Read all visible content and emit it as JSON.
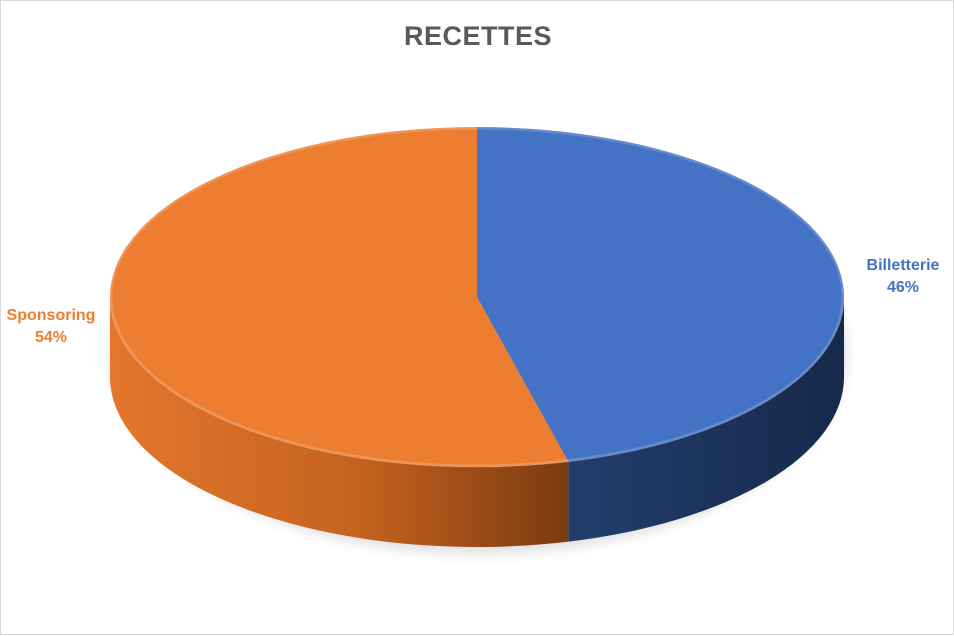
{
  "chart_data": {
    "type": "pie",
    "title": "RECETTES",
    "slices": [
      {
        "label": "Billetterie",
        "value": 46,
        "value_label": "46%",
        "color": "#4472c4",
        "side_color": "#1f3864"
      },
      {
        "label": "Sponsoring",
        "value": 54,
        "value_label": "54%",
        "color": "#ed7d31",
        "side_color": "#843c0c"
      }
    ],
    "legend": "none",
    "style": "3d"
  }
}
